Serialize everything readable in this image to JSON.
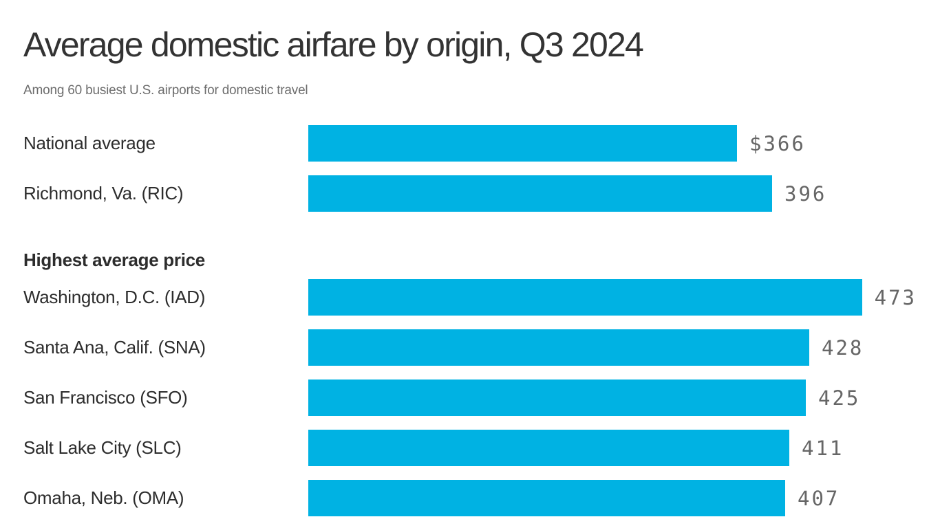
{
  "title": "Average domestic airfare by origin, Q3 2024",
  "subtitle": "Among 60 busiest U.S. airports for domestic travel",
  "colors": {
    "bar": "#00b2e3",
    "title": "#333333",
    "subtitle": "#6d6d6d",
    "label": "#2d2d2d",
    "value": "#666666"
  },
  "chart_data": {
    "type": "bar",
    "orientation": "horizontal",
    "unit": "USD",
    "value_axis_range": [
      0,
      473
    ],
    "grid": false,
    "legend": false,
    "groups": [
      {
        "header": null,
        "rows": [
          {
            "label": "National average",
            "value": 366,
            "value_label": "$366"
          },
          {
            "label": "Richmond, Va. (RIC)",
            "value": 396,
            "value_label": "396"
          }
        ]
      },
      {
        "header": "Highest average price",
        "rows": [
          {
            "label": "Washington, D.C. (IAD)",
            "value": 473,
            "value_label": "473"
          },
          {
            "label": "Santa Ana, Calif. (SNA)",
            "value": 428,
            "value_label": "428"
          },
          {
            "label": "San Francisco (SFO)",
            "value": 425,
            "value_label": "425"
          },
          {
            "label": "Salt Lake City (SLC)",
            "value": 411,
            "value_label": "411"
          },
          {
            "label": "Omaha, Neb. (OMA)",
            "value": 407,
            "value_label": "407"
          }
        ]
      }
    ]
  }
}
